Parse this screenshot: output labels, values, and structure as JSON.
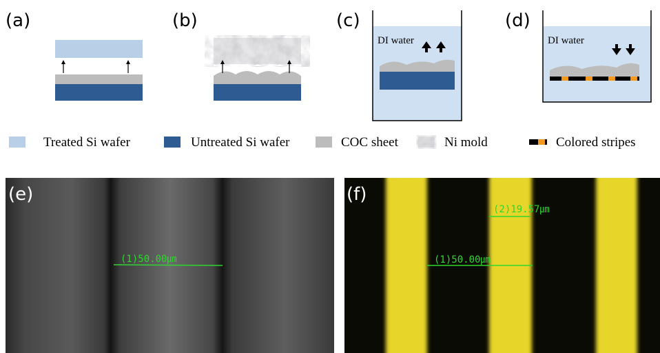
{
  "panels": [
    {
      "label": "(a)"
    },
    {
      "label": "(b)"
    },
    {
      "label": "(c)",
      "medium": "DI water"
    },
    {
      "label": "(d)",
      "medium": "DI water"
    },
    {
      "label": "(e)",
      "measurements": [
        "(1)50.00㎛"
      ]
    },
    {
      "label": "(f)",
      "measurements": [
        "(2)19.57㎛",
        "(1)50.00㎛"
      ]
    }
  ],
  "legend": [
    "Treated Si wafer",
    "Untreated Si wafer",
    "COC sheet",
    "Ni mold",
    "Colored stripes"
  ]
}
